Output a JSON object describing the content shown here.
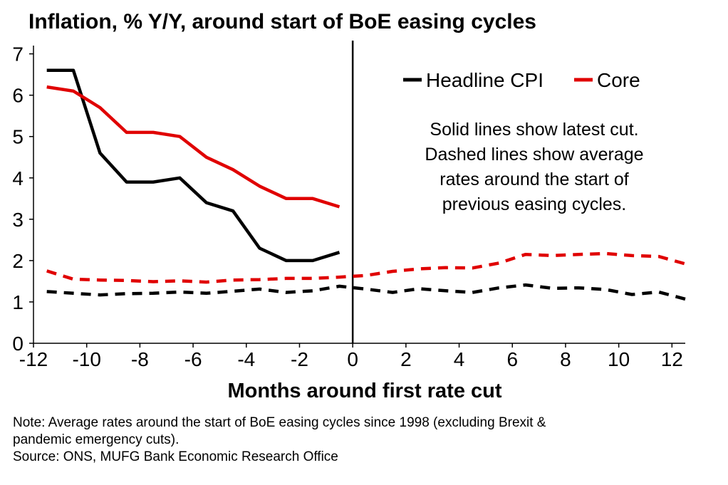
{
  "chart_data": {
    "type": "line",
    "title": "Inflation, % Y/Y, around start of BoE easing cycles",
    "xlabel": "Months around first rate cut",
    "ylabel": "",
    "xlim": [
      -12,
      12.5
    ],
    "ylim": [
      0,
      7.2
    ],
    "xticks": [
      -12,
      -10,
      -8,
      -6,
      -4,
      -2,
      0,
      2,
      4,
      6,
      8,
      10,
      12
    ],
    "yticks": [
      0,
      1,
      2,
      3,
      4,
      5,
      6,
      7
    ],
    "grid": false,
    "legend_placement": "top-right",
    "legend": [
      "Headline CPI",
      "Core"
    ],
    "annotation": [
      "Solid lines show latest cut.",
      "Dashed lines show average",
      "rates around the start of",
      "previous easing cycles."
    ],
    "series": [
      {
        "name": "Headline CPI",
        "style": "solid",
        "color": "#000000",
        "x": [
          -11.5,
          -10.5,
          -9.5,
          -8.5,
          -7.5,
          -6.5,
          -5.5,
          -4.5,
          -3.5,
          -2.5,
          -1.5,
          -0.5
        ],
        "values": [
          6.6,
          6.6,
          4.6,
          3.9,
          3.9,
          4.0,
          3.4,
          3.2,
          2.3,
          2.0,
          2.0,
          2.2
        ]
      },
      {
        "name": "Core",
        "style": "solid",
        "color": "#e00000",
        "x": [
          -11.5,
          -10.5,
          -9.5,
          -8.5,
          -7.5,
          -6.5,
          -5.5,
          -4.5,
          -3.5,
          -2.5,
          -1.5,
          -0.5
        ],
        "values": [
          6.2,
          6.1,
          5.7,
          5.1,
          5.1,
          5.0,
          4.5,
          4.2,
          3.8,
          3.5,
          3.5,
          3.3
        ]
      },
      {
        "style": "dashed",
        "color": "#000000",
        "x": [
          -11.5,
          -10.5,
          -9.5,
          -8.5,
          -7.5,
          -6.5,
          -5.5,
          -4.5,
          -3.5,
          -2.5,
          -1.5,
          -0.5,
          0.5,
          1.5,
          2.5,
          3.5,
          4.5,
          5.5,
          6.5,
          7.5,
          8.5,
          9.5,
          10.5,
          11.5,
          12.5
        ],
        "values": [
          1.25,
          1.21,
          1.17,
          1.2,
          1.21,
          1.24,
          1.21,
          1.26,
          1.31,
          1.23,
          1.27,
          1.38,
          1.31,
          1.23,
          1.32,
          1.27,
          1.23,
          1.34,
          1.41,
          1.33,
          1.34,
          1.3,
          1.18,
          1.24,
          1.07
        ]
      },
      {
        "style": "dashed",
        "color": "#e00000",
        "x": [
          -11.5,
          -10.5,
          -9.5,
          -8.5,
          -7.5,
          -6.5,
          -5.5,
          -4.5,
          -3.5,
          -2.5,
          -1.5,
          -0.5,
          0.5,
          1.5,
          2.5,
          3.5,
          4.5,
          5.5,
          6.5,
          7.5,
          8.5,
          9.5,
          10.5,
          11.5,
          12.5
        ],
        "values": [
          1.75,
          1.55,
          1.53,
          1.52,
          1.49,
          1.51,
          1.48,
          1.53,
          1.54,
          1.57,
          1.57,
          1.6,
          1.64,
          1.74,
          1.8,
          1.83,
          1.82,
          1.94,
          2.15,
          2.12,
          2.15,
          2.17,
          2.12,
          2.1,
          1.92
        ]
      }
    ]
  },
  "note": {
    "line1": "Note: Average rates around the start of BoE easing cycles since 1998 (excluding Brexit &",
    "line2": "pandemic emergency cuts).",
    "line3": "Source: ONS, MUFG Bank Economic Research Office"
  }
}
